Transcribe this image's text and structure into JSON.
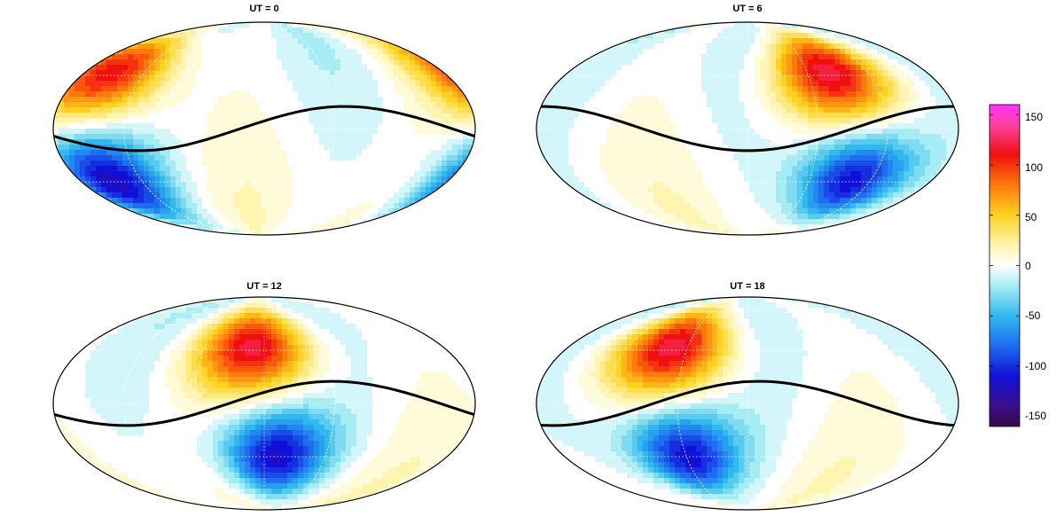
{
  "figure": {
    "panels": [
      {
        "id": "ut0",
        "title": "UT = 0",
        "positive_center_lon": -150,
        "negative_center_lon": -150,
        "equator_shift_lon": -20
      },
      {
        "id": "ut6",
        "title": "UT = 6",
        "positive_center_lon": 80,
        "negative_center_lon": 100,
        "equator_shift_lon": 90
      },
      {
        "id": "ut12",
        "title": "UT = 12",
        "positive_center_lon": -10,
        "negative_center_lon": 10,
        "equator_shift_lon": -30
      },
      {
        "id": "ut18",
        "title": "UT = 18",
        "positive_center_lon": -75,
        "negative_center_lon": -60,
        "equator_shift_lon": -80
      }
    ],
    "colorbar": {
      "range": [
        -160,
        160
      ],
      "ticks": [
        "150",
        "100",
        "50",
        "0",
        "-50",
        "-100",
        "-150"
      ],
      "tick_values": [
        150,
        100,
        50,
        0,
        -50,
        -100,
        -150
      ],
      "stops": [
        {
          "value": -160,
          "color": "#3a0a4a"
        },
        {
          "value": -140,
          "color": "#3b0f8a"
        },
        {
          "value": -110,
          "color": "#1010d8"
        },
        {
          "value": -80,
          "color": "#1e6cf0"
        },
        {
          "value": -50,
          "color": "#2fb9ee"
        },
        {
          "value": -20,
          "color": "#a6ecf4"
        },
        {
          "value": 0,
          "color": "#ffffff"
        },
        {
          "value": 20,
          "color": "#fff4b0"
        },
        {
          "value": 50,
          "color": "#ffd21f"
        },
        {
          "value": 80,
          "color": "#ff7a0a"
        },
        {
          "value": 110,
          "color": "#f01010"
        },
        {
          "value": 140,
          "color": "#ff40a0"
        },
        {
          "value": 160,
          "color": "#ff33ff"
        }
      ]
    }
  }
}
